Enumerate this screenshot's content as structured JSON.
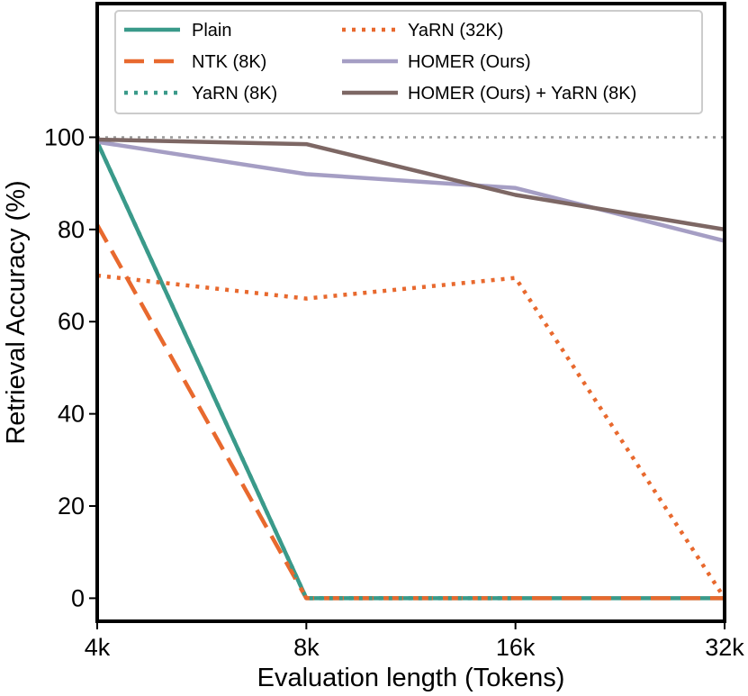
{
  "chart_data": {
    "type": "line",
    "title": "",
    "xlabel": "Evaluation length (Tokens)",
    "ylabel": "Retrieval Accuracy (%)",
    "categories": [
      "4k",
      "8k",
      "16k",
      "32k"
    ],
    "ylim": [
      -5,
      129
    ],
    "yticks": [
      0,
      20,
      40,
      60,
      80,
      100
    ],
    "grid": false,
    "legend_position": "top",
    "reference_line": {
      "y": 100,
      "style": "dotted",
      "color": "#999999"
    },
    "series": [
      {
        "name": "Plain",
        "values": [
          99,
          0,
          0,
          0
        ],
        "color": "#3a9a8a",
        "style": "solid"
      },
      {
        "name": "NTK (8K)",
        "values": [
          81,
          0,
          0,
          0
        ],
        "color": "#e8692e",
        "style": "dashed"
      },
      {
        "name": "YaRN (8K)",
        "values": [
          99,
          0,
          0,
          null
        ],
        "color": "#3a9a8a",
        "style": "dotted"
      },
      {
        "name": "YaRN (32K)",
        "values": [
          70,
          65,
          69.5,
          0
        ],
        "color": "#e8692e",
        "style": "dotted"
      },
      {
        "name": "HOMER (Ours)",
        "values": [
          99,
          92,
          89,
          77.5
        ],
        "color": "#a59ec4",
        "style": "solid"
      },
      {
        "name": "HOMER (Ours) + YaRN (8K)",
        "values": [
          99.5,
          98.5,
          87.5,
          80
        ],
        "color": "#7d6764",
        "style": "solid"
      }
    ]
  }
}
